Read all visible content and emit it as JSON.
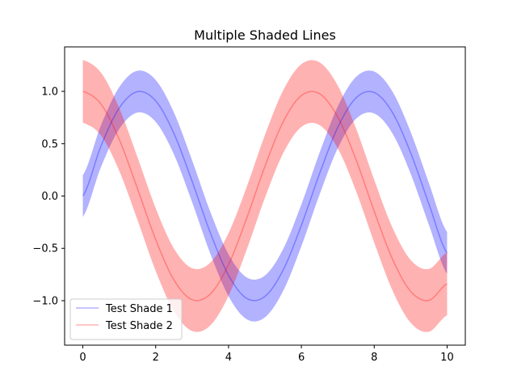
{
  "chart_data": {
    "type": "line",
    "title": "Multiple Shaded Lines",
    "xlabel": "",
    "ylabel": "",
    "xlim": [
      -0.5,
      10.5
    ],
    "ylim": [
      -1.425,
      1.425
    ],
    "x_ticks": [
      0,
      2,
      4,
      6,
      8,
      10
    ],
    "x_tick_labels": [
      "0",
      "2",
      "4",
      "6",
      "8",
      "10"
    ],
    "y_ticks": [
      -1.0,
      -0.5,
      0.0,
      0.5,
      1.0
    ],
    "y_tick_labels": [
      "−1.0",
      "−0.5",
      "0.0",
      "0.5",
      "1.0"
    ],
    "grid": false,
    "legend_placement": "lower left",
    "x": [
      0,
      0.5,
      1,
      1.5,
      2,
      2.5,
      3,
      3.5,
      4,
      4.5,
      5,
      5.5,
      6,
      6.5,
      7,
      7.5,
      8,
      8.5,
      9,
      9.5,
      10
    ],
    "series": [
      {
        "name": "Test Shade 1",
        "color": "#0000ff",
        "band_half_width": 0.2,
        "values": [
          0.0,
          0.479,
          0.841,
          0.997,
          0.909,
          0.598,
          0.141,
          -0.351,
          -0.757,
          -0.978,
          -0.959,
          -0.706,
          -0.279,
          0.215,
          0.657,
          0.938,
          0.989,
          0.798,
          0.412,
          -0.075,
          -0.544
        ]
      },
      {
        "name": "Test Shade 2",
        "color": "#ff0000",
        "band_half_width": 0.3,
        "values": [
          1.0,
          0.878,
          0.54,
          0.071,
          -0.416,
          -0.801,
          -0.99,
          -0.936,
          -0.654,
          -0.211,
          0.284,
          0.709,
          0.96,
          0.977,
          0.754,
          0.347,
          -0.146,
          -0.602,
          -0.911,
          -0.997,
          -0.839
        ]
      }
    ]
  }
}
